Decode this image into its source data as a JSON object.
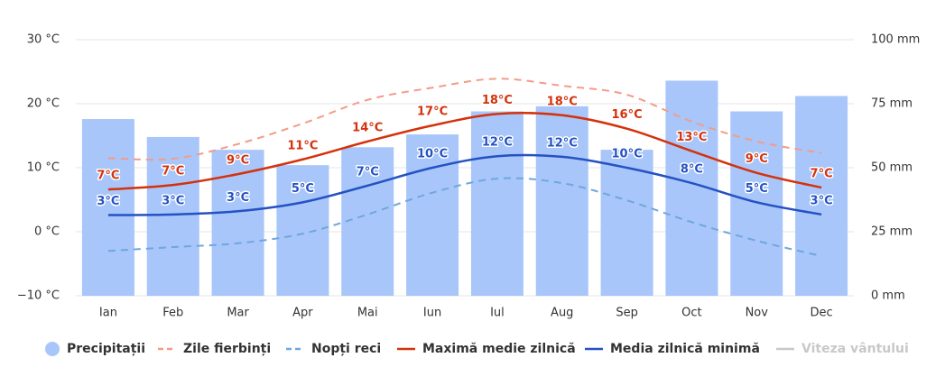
{
  "chart_data": {
    "type": "combo",
    "categories": [
      "Ian",
      "Feb",
      "Mar",
      "Apr",
      "Mai",
      "Iun",
      "Iul",
      "Aug",
      "Sep",
      "Oct",
      "Nov",
      "Dec"
    ],
    "series": [
      {
        "name": "Precipitații",
        "type": "bar",
        "axis": "y2",
        "color": "#a8c6fa",
        "values": [
          69,
          62,
          57,
          51,
          58,
          63,
          72,
          74,
          57,
          84,
          72,
          78
        ]
      },
      {
        "name": "Zile fierbinți",
        "type": "line",
        "dashed": true,
        "color": "#f49b88",
        "values": [
          11.5,
          11.4,
          13.7,
          16.9,
          20.6,
          22.5,
          23.9,
          22.8,
          21.4,
          17.2,
          14.1,
          12.3
        ]
      },
      {
        "name": "Nopți reci",
        "type": "line",
        "dashed": true,
        "color": "#6fa7dc",
        "values": [
          -3.0,
          -2.4,
          -1.8,
          -0.3,
          2.7,
          6.1,
          8.3,
          7.6,
          4.9,
          1.5,
          -1.4,
          -3.8
        ]
      },
      {
        "name": "Maximă medie zilnică",
        "type": "line",
        "color": "#d4320c",
        "values": [
          6.6,
          7.3,
          9.0,
          11.3,
          14.1,
          16.6,
          18.4,
          18.2,
          16.1,
          12.6,
          9.2,
          6.9
        ],
        "value_labels": [
          "7°C",
          "7°C",
          "9°C",
          "11°C",
          "14°C",
          "17°C",
          "18°C",
          "18°C",
          "16°C",
          "13°C",
          "9°C",
          "7°C"
        ]
      },
      {
        "name": "Media zilnică minimă",
        "type": "line",
        "color": "#2552c2",
        "values": [
          2.6,
          2.7,
          3.2,
          4.6,
          7.2,
          10.0,
          11.8,
          11.7,
          10.0,
          7.6,
          4.6,
          2.7
        ],
        "value_labels": [
          "3°C",
          "3°C",
          "3°C",
          "5°C",
          "7°C",
          "10°C",
          "12°C",
          "12°C",
          "10°C",
          "8°C",
          "5°C",
          "3°C"
        ]
      }
    ],
    "hidden_series": [
      {
        "name": "Viteza vântului",
        "color": "#c8c8c8"
      }
    ],
    "ylim": [
      -10,
      30
    ],
    "yticks": [
      {
        "value": -10,
        "label": "−10 °C"
      },
      {
        "value": 0,
        "label": "0 °C"
      },
      {
        "value": 10,
        "label": "10 °C"
      },
      {
        "value": 20,
        "label": "20 °C"
      },
      {
        "value": 30,
        "label": "30 °C"
      }
    ],
    "y2lim": [
      0,
      100
    ],
    "y2ticks": [
      {
        "value": 0,
        "label": "0 mm"
      },
      {
        "value": 25,
        "label": "25 mm"
      },
      {
        "value": 50,
        "label": "50 mm"
      },
      {
        "value": 75,
        "label": "75 mm"
      },
      {
        "value": 100,
        "label": "100 mm"
      }
    ],
    "grid": true,
    "legend": "bottom"
  }
}
